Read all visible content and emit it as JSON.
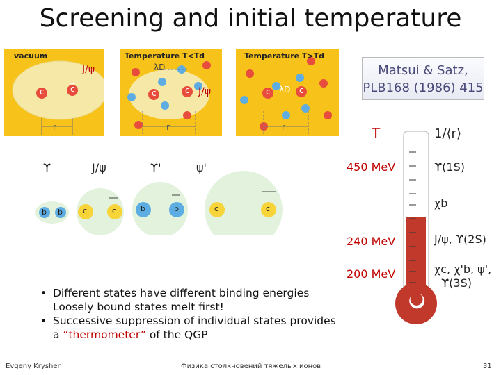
{
  "title": "Screening and initial temperature",
  "panels": {
    "vacuum": {
      "label": "vacuum",
      "state": "J/ψ",
      "r": "r",
      "c": "c",
      "cbar": "c"
    },
    "below": {
      "label": "Temperature T<Td",
      "state": "J/ψ",
      "lambda": "λD",
      "r": "r",
      "c": "c",
      "cbar": "c"
    },
    "above": {
      "label": "Temperature T>Td",
      "lambda": "λD",
      "r": "r",
      "c": "c",
      "cbar": "c"
    }
  },
  "states": {
    "headers": [
      "ϒ",
      "J/ψ",
      "ϒ'",
      "ψ'"
    ],
    "quarks": {
      "b": "b",
      "c": "c"
    }
  },
  "reference": {
    "line1": "Matsui & Satz,",
    "line2": "PLB168 (1986) 415"
  },
  "thermometer": {
    "T_label": "T",
    "r_label": "1/⟨r⟩",
    "temps": [
      "450 MeV",
      "240 MeV",
      "200 MeV"
    ],
    "states": [
      "ϒ(1S)",
      "χb",
      "J/ψ, ϒ(2S)",
      "χc, χ'b, ψ',",
      "ϒ(3S)"
    ],
    "colors": {
      "mercury": "#c0392b",
      "temp_text": "#c00000"
    }
  },
  "bullets": {
    "b1_line1": "Different states have different binding energies",
    "b1_line2": "Loosely bound states melt first!",
    "b2_line1": "Successive suppression of individual states provides",
    "b2_pre": "a ",
    "b2_quote": "“thermometer”",
    "b2_post": " of the QGP"
  },
  "footer": {
    "author": "Evgeny Kryshen",
    "course": "Физика столкновений тяжелых ионов",
    "page": "31"
  }
}
